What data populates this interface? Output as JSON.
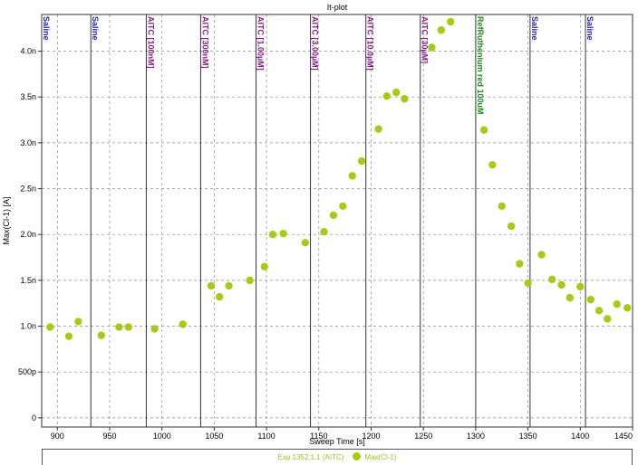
{
  "chart_data": {
    "type": "scatter",
    "title": "It-plot",
    "xlabel": "Sweep Time [s]",
    "ylabel": "Max(Cl-1) [A]",
    "xlim": [
      885,
      1450
    ],
    "ylim": [
      -0.1,
      4.4
    ],
    "xticks": [
      900,
      950,
      1000,
      1050,
      1100,
      1150,
      1200,
      1250,
      1300,
      1350,
      1400,
      1450
    ],
    "xtick_labels": [
      "900",
      "950",
      "1000",
      "1050",
      "1100",
      "1150",
      "1200",
      "1250",
      "1300",
      "1350",
      "1400",
      "1450"
    ],
    "yticks": [
      0,
      0.5,
      1.0,
      1.5,
      2.0,
      2.5,
      3.0,
      3.5,
      4.0
    ],
    "ytick_labels": [
      "0",
      "500p",
      "1.0n",
      "1.5n",
      "2.0n",
      "2.5n",
      "3.0n",
      "3.5n",
      "4.0n"
    ],
    "grid": true,
    "events": [
      {
        "x": 885,
        "label": "Saline",
        "color": "#2222bb"
      },
      {
        "x": 932,
        "label": "Saline",
        "color": "#2222bb"
      },
      {
        "x": 985,
        "label": "AITC [100nM]",
        "color": "#8b1a8b"
      },
      {
        "x": 1037,
        "label": "AITC [300nM]",
        "color": "#8b1a8b"
      },
      {
        "x": 1090,
        "label": "AITC [1.00µM]",
        "color": "#8b1a8b"
      },
      {
        "x": 1142,
        "label": "AITC [3.00µM]",
        "color": "#8b1a8b"
      },
      {
        "x": 1195,
        "label": "AITC [10.0µM]",
        "color": "#8b1a8b"
      },
      {
        "x": 1247,
        "label": "AITC [30µM]",
        "color": "#8b1a8b"
      },
      {
        "x": 1300,
        "label": "RefRuthenium red 100uM",
        "color": "#1a8b1a"
      },
      {
        "x": 1352,
        "label": "Saline",
        "color": "#2222bb"
      },
      {
        "x": 1405,
        "label": "Saline",
        "color": "#2222bb"
      }
    ],
    "series": [
      {
        "name": "Max(Cl-1)",
        "color": "#a6cc12",
        "x": [
          893,
          911,
          920,
          942,
          959,
          968,
          993,
          1020,
          1047,
          1055,
          1064,
          1084,
          1098,
          1106,
          1116,
          1137,
          1155,
          1164,
          1173,
          1182,
          1191,
          1207,
          1215,
          1224,
          1232,
          1258,
          1267,
          1276,
          1308,
          1316,
          1325,
          1334,
          1342,
          1350,
          1363,
          1373,
          1382,
          1390,
          1400,
          1410,
          1418,
          1426,
          1435,
          1445
        ],
        "y": [
          0.99,
          0.89,
          1.05,
          0.9,
          0.99,
          0.99,
          0.97,
          1.02,
          1.44,
          1.32,
          1.44,
          1.5,
          1.65,
          2.0,
          2.01,
          1.91,
          2.03,
          2.21,
          2.31,
          2.64,
          2.8,
          3.15,
          3.51,
          3.55,
          3.48,
          4.04,
          4.23,
          4.32,
          3.14,
          2.76,
          2.31,
          2.09,
          1.68,
          1.47,
          1.78,
          1.51,
          1.45,
          1.31,
          1.43,
          1.29,
          1.17,
          1.08,
          1.24,
          1.2
        ]
      }
    ],
    "legend": {
      "position": "bottom",
      "dataset": "Exp 1352.1.1 (AITC)",
      "series": "Max(Cl-1)"
    }
  }
}
